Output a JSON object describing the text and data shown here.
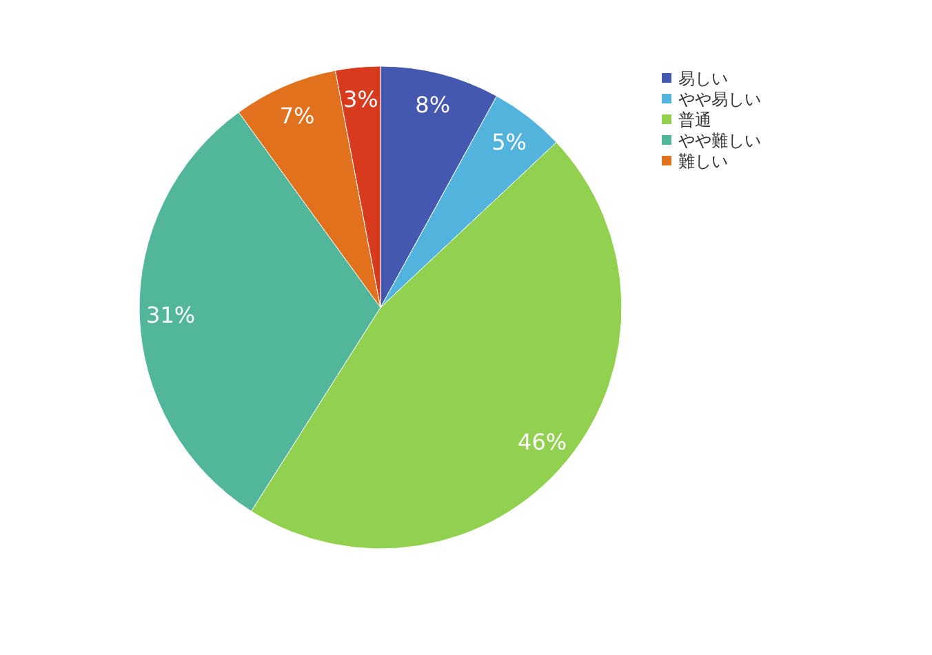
{
  "chart_data": {
    "type": "pie",
    "categories": [
      "易しい",
      "やや易しい",
      "普通",
      "やや難しい",
      "難しい",
      null
    ],
    "values": [
      8,
      5,
      46,
      31,
      7,
      3
    ],
    "value_labels": [
      "8%",
      "5%",
      "46%",
      "31%",
      "7%",
      "3%"
    ],
    "colors": [
      "#4458b0",
      "#52b4dc",
      "#92d050",
      "#52b79a",
      "#e2711d",
      "#d83a1e"
    ],
    "legend": "top right"
  }
}
